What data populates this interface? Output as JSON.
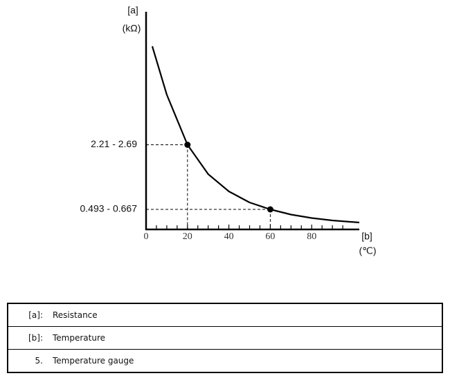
{
  "chart_data": {
    "type": "line",
    "y_label": "[a]",
    "y_unit": "(kΩ)",
    "x_label": "[b]",
    "x_unit": "(℃)",
    "xlim": [
      0,
      103
    ],
    "xticks": [
      0,
      20,
      40,
      60,
      80
    ],
    "ylim": [
      0,
      6.3
    ],
    "yticks": [
      {
        "value": 2.45,
        "label": "2.21 - 2.69"
      },
      {
        "value": 0.58,
        "label": "0.493 - 0.667"
      }
    ],
    "color": "#000000",
    "series": [
      {
        "x": [
          3,
          10,
          20,
          30,
          40,
          50,
          60,
          70,
          80,
          90,
          103
        ],
        "values": [
          5.3,
          3.9,
          2.45,
          1.6,
          1.1,
          0.78,
          0.58,
          0.43,
          0.33,
          0.26,
          0.2
        ]
      }
    ],
    "markers": {
      "x": [
        20,
        60
      ],
      "values": [
        2.45,
        0.58
      ]
    }
  },
  "table": {
    "rows": [
      [
        "[a]:",
        "Resistance"
      ],
      [
        "[b]:",
        "Temperature"
      ],
      [
        "5.",
        "Temperature gauge"
      ]
    ]
  }
}
